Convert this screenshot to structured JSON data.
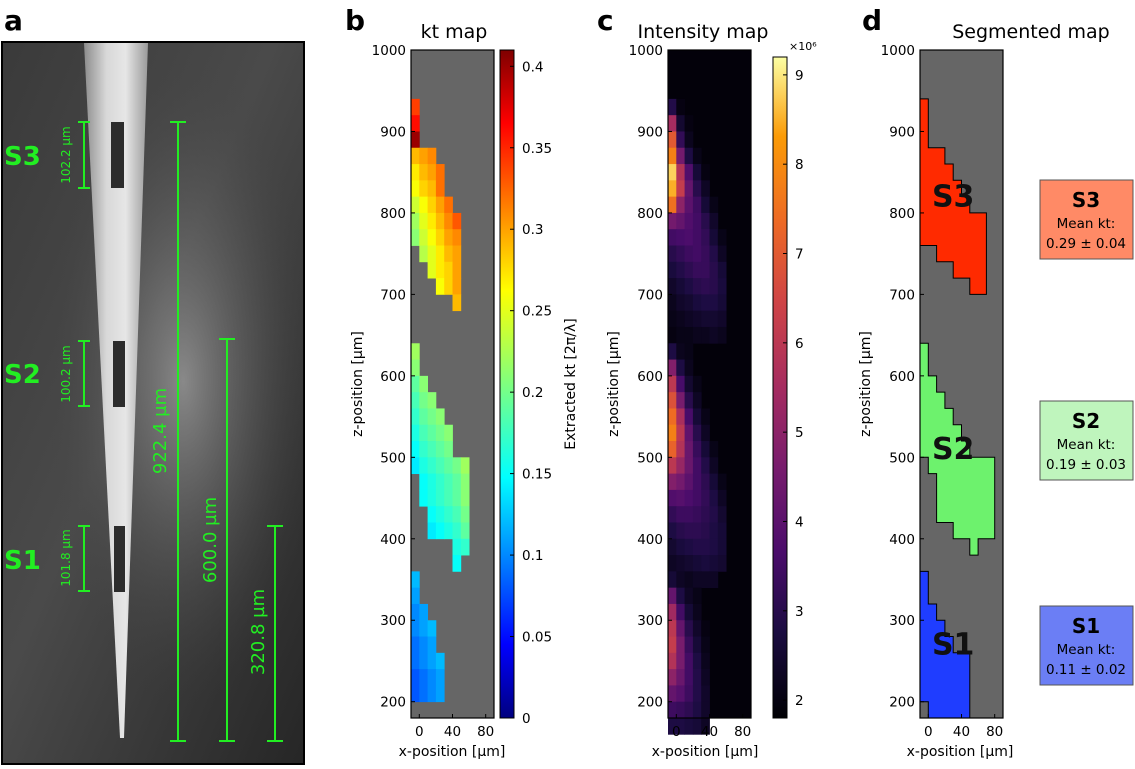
{
  "panels": {
    "a": {
      "label": "a"
    },
    "b": {
      "label": "b",
      "title": "kt map"
    },
    "c": {
      "label": "c",
      "title": "Intensity map"
    },
    "d": {
      "label": "d",
      "title": "Segmented map"
    }
  },
  "sem_image": {
    "sections": [
      {
        "name": "S3",
        "length": "102.2 µm"
      },
      {
        "name": "S2",
        "length": "100.2 µm"
      },
      {
        "name": "S1",
        "length": "101.8 µm"
      }
    ],
    "distances": [
      "922.4 µm",
      "600.0 µm",
      "320.8 µm"
    ]
  },
  "chart_data": [
    {
      "type": "heatmap",
      "panel": "b",
      "title": "kt map",
      "xlabel": "x-position [µm]",
      "ylabel": "z-position [µm]",
      "xticks": [
        "0",
        "40",
        "80"
      ],
      "yticks": [
        "200",
        "300",
        "400",
        "500",
        "600",
        "700",
        "800",
        "900",
        "1000"
      ],
      "xlim": [
        -10,
        90
      ],
      "ylim": [
        180,
        1000
      ],
      "colorbar": {
        "label": "Extracted kt [2π/λ]",
        "range": [
          0,
          0.41
        ],
        "ticks": [
          "0",
          "0.05",
          "0.1",
          "0.15",
          "0.2",
          "0.25",
          "0.3",
          "0.35",
          "0.4"
        ],
        "colormap": "jet"
      },
      "background_color": "#666666",
      "grid": {
        "x0": -10,
        "dx": 10,
        "z0": 1000,
        "dz": 20
      },
      "rows_note": "each row: [z_top, x_start_index, values...]",
      "rows": [
        [
          940,
          0,
          0.34
        ],
        [
          920,
          0,
          0.36
        ],
        [
          900,
          0,
          0.4
        ],
        [
          880,
          0,
          0.29,
          0.3,
          0.31
        ],
        [
          860,
          0,
          0.27,
          0.29,
          0.3,
          0.32
        ],
        [
          840,
          0,
          0.26,
          0.28,
          0.29,
          0.32
        ],
        [
          820,
          0,
          0.24,
          0.26,
          0.28,
          0.3,
          0.32
        ],
        [
          800,
          0,
          0.22,
          0.25,
          0.27,
          0.29,
          0.31,
          0.33
        ],
        [
          780,
          0,
          0.21,
          0.24,
          0.26,
          0.28,
          0.3,
          0.31
        ],
        [
          760,
          1,
          0.23,
          0.25,
          0.27,
          0.29,
          0.3
        ],
        [
          740,
          2,
          0.25,
          0.27,
          0.28,
          0.3
        ],
        [
          720,
          3,
          0.26,
          0.28,
          0.3
        ],
        [
          700,
          5,
          0.29
        ],
        [
          640,
          0,
          0.22
        ],
        [
          620,
          0,
          0.21
        ],
        [
          600,
          0,
          0.19,
          0.21
        ],
        [
          580,
          0,
          0.18,
          0.2,
          0.21
        ],
        [
          560,
          0,
          0.17,
          0.19,
          0.2,
          0.21
        ],
        [
          540,
          0,
          0.16,
          0.18,
          0.19,
          0.2,
          0.21
        ],
        [
          520,
          0,
          0.15,
          0.17,
          0.18,
          0.19,
          0.2
        ],
        [
          500,
          0,
          0.14,
          0.16,
          0.17,
          0.18,
          0.19,
          0.2,
          0.22
        ],
        [
          480,
          1,
          0.15,
          0.16,
          0.17,
          0.18,
          0.19,
          0.21
        ],
        [
          460,
          1,
          0.15,
          0.16,
          0.17,
          0.18,
          0.19,
          0.21
        ],
        [
          440,
          2,
          0.15,
          0.16,
          0.17,
          0.18,
          0.2
        ],
        [
          420,
          2,
          0.14,
          0.15,
          0.16,
          0.17,
          0.19
        ],
        [
          400,
          5,
          0.16,
          0.17
        ],
        [
          380,
          5,
          0.15
        ],
        [
          360,
          0,
          0.12
        ],
        [
          340,
          0,
          0.11
        ],
        [
          320,
          0,
          0.1,
          0.11
        ],
        [
          300,
          0,
          0.1,
          0.11,
          0.12
        ],
        [
          280,
          0,
          0.09,
          0.1,
          0.11
        ],
        [
          260,
          0,
          0.09,
          0.1,
          0.11,
          0.12
        ],
        [
          240,
          0,
          0.08,
          0.09,
          0.1,
          0.11
        ],
        [
          220,
          0,
          0.08,
          0.09,
          0.1,
          0.11
        ]
      ]
    },
    {
      "type": "heatmap",
      "panel": "c",
      "title": "Intensity map",
      "xlabel": "x-position [µm]",
      "ylabel": "z-position [µm]",
      "xticks": [
        "0",
        "40",
        "80"
      ],
      "yticks": [
        "200",
        "300",
        "400",
        "500",
        "600",
        "700",
        "800",
        "900",
        "1000"
      ],
      "xlim": [
        -10,
        90
      ],
      "ylim": [
        180,
        1000
      ],
      "colorbar": {
        "label": "",
        "multiplier": "×10⁶",
        "range": [
          1.8,
          9.2
        ],
        "ticks": [
          "2",
          "3",
          "4",
          "5",
          "6",
          "7",
          "8",
          "9"
        ],
        "colormap": "inferno"
      },
      "grid": {
        "x0": -10,
        "dx": 10,
        "z0": 1000,
        "dz": 20,
        "ncols": 8
      },
      "background_value": 1.9,
      "rows_note": "each row: [z_top, x_start_index, values...]",
      "rows": [
        [
          940,
          0,
          2.9,
          2.0
        ],
        [
          920,
          0,
          5.5,
          2.5,
          2.0
        ],
        [
          900,
          0,
          7.0,
          3.2,
          2.2
        ],
        [
          880,
          0,
          7.8,
          4.5,
          2.8,
          2.1
        ],
        [
          860,
          0,
          8.8,
          5.8,
          3.8,
          2.6,
          2.0
        ],
        [
          840,
          0,
          8.5,
          6.2,
          4.2,
          3.0,
          2.3
        ],
        [
          820,
          0,
          7.5,
          5.0,
          4.0,
          3.4,
          2.6,
          2.1
        ],
        [
          800,
          0,
          4.5,
          4.2,
          3.8,
          3.5,
          3.0,
          2.4
        ],
        [
          780,
          0,
          3.5,
          3.6,
          3.7,
          3.5,
          3.2,
          2.6,
          2.1
        ],
        [
          760,
          0,
          3.0,
          3.2,
          3.4,
          3.5,
          3.3,
          2.9,
          2.3
        ],
        [
          740,
          0,
          2.7,
          2.9,
          3.1,
          3.3,
          3.3,
          3.0,
          2.6
        ],
        [
          720,
          0,
          2.4,
          2.6,
          2.8,
          3.0,
          3.1,
          3.0,
          2.7
        ],
        [
          700,
          0,
          2.2,
          2.4,
          2.5,
          2.7,
          2.8,
          2.8,
          2.6
        ],
        [
          680,
          0,
          2.1,
          2.2,
          2.3,
          2.4,
          2.5,
          2.5,
          2.4
        ],
        [
          660,
          0,
          2.0,
          2.1,
          2.1,
          2.2,
          2.2,
          2.3,
          2.2
        ],
        [
          640,
          0,
          2.8,
          2.2,
          2.1
        ],
        [
          620,
          0,
          4.8,
          2.8,
          2.2
        ],
        [
          600,
          0,
          6.0,
          3.6,
          2.5,
          2.1
        ],
        [
          580,
          0,
          6.8,
          4.6,
          3.0,
          2.3
        ],
        [
          560,
          0,
          7.4,
          5.6,
          3.6,
          2.6,
          2.1
        ],
        [
          540,
          0,
          7.8,
          6.0,
          4.1,
          3.0,
          2.3
        ],
        [
          520,
          0,
          7.2,
          5.8,
          4.3,
          3.3,
          2.6,
          2.1
        ],
        [
          500,
          0,
          6.0,
          5.2,
          4.3,
          3.5,
          2.9,
          2.3
        ],
        [
          480,
          0,
          4.8,
          4.5,
          4.0,
          3.5,
          3.1,
          2.6,
          2.1
        ],
        [
          460,
          0,
          3.8,
          3.9,
          3.7,
          3.5,
          3.2,
          2.8,
          2.3
        ],
        [
          440,
          0,
          3.2,
          3.4,
          3.4,
          3.3,
          3.1,
          2.9,
          2.5
        ],
        [
          420,
          0,
          2.8,
          3.0,
          3.1,
          3.1,
          3.0,
          2.8,
          2.6
        ],
        [
          400,
          0,
          2.5,
          2.7,
          2.8,
          2.9,
          2.9,
          2.8,
          2.6
        ],
        [
          380,
          0,
          2.3,
          2.4,
          2.5,
          2.6,
          2.7,
          2.6,
          2.5
        ],
        [
          360,
          0,
          2.6,
          2.3,
          2.2,
          2.3,
          2.3,
          2.3
        ],
        [
          340,
          0,
          4.2,
          2.8,
          2.3,
          2.1
        ],
        [
          320,
          0,
          5.4,
          3.5,
          2.6,
          2.2
        ],
        [
          300,
          0,
          6.0,
          4.2,
          3.0,
          2.4,
          2.0
        ],
        [
          280,
          0,
          6.2,
          4.6,
          3.3,
          2.6,
          2.1
        ],
        [
          260,
          0,
          5.8,
          4.6,
          3.5,
          2.8,
          2.2
        ],
        [
          240,
          0,
          5.0,
          4.3,
          3.5,
          2.9,
          2.3
        ],
        [
          220,
          0,
          4.2,
          3.9,
          3.4,
          2.9,
          2.4
        ],
        [
          200,
          0,
          3.4,
          3.3,
          3.1,
          2.8,
          2.4
        ],
        [
          180,
          0,
          2.8,
          2.8,
          2.7,
          2.6,
          2.3
        ]
      ]
    },
    {
      "type": "heatmap",
      "panel": "d",
      "title": "Segmented map",
      "xlabel": "x-position [µm]",
      "ylabel": "z-position [µm]",
      "xticks": [
        "0",
        "40",
        "80"
      ],
      "yticks": [
        "200",
        "300",
        "400",
        "500",
        "600",
        "700",
        "800",
        "900",
        "1000"
      ],
      "xlim": [
        -10,
        90
      ],
      "ylim": [
        180,
        1000
      ],
      "background_color": "#666666",
      "segments": [
        {
          "name": "S3",
          "color": "#ff2a00",
          "mean_kt_label": "Mean kt:",
          "mean_kt": "0.29 ± 0.04",
          "box_color": "#ff8a66",
          "polygon_xz": [
            [
              -10,
              940
            ],
            [
              0,
              940
            ],
            [
              0,
              880
            ],
            [
              20,
              880
            ],
            [
              20,
              860
            ],
            [
              30,
              860
            ],
            [
              30,
              840
            ],
            [
              40,
              840
            ],
            [
              40,
              820
            ],
            [
              50,
              820
            ],
            [
              50,
              800
            ],
            [
              70,
              800
            ],
            [
              70,
              700
            ],
            [
              50,
              700
            ],
            [
              50,
              720
            ],
            [
              30,
              720
            ],
            [
              30,
              740
            ],
            [
              10,
              740
            ],
            [
              10,
              760
            ],
            [
              -10,
              760
            ]
          ]
        },
        {
          "name": "S2",
          "color": "#6df26d",
          "mean_kt_label": "Mean kt:",
          "mean_kt": "0.19 ± 0.03",
          "box_color": "#bff5bd",
          "polygon_xz": [
            [
              -10,
              640
            ],
            [
              0,
              640
            ],
            [
              0,
              600
            ],
            [
              10,
              600
            ],
            [
              10,
              580
            ],
            [
              20,
              580
            ],
            [
              20,
              560
            ],
            [
              30,
              560
            ],
            [
              30,
              540
            ],
            [
              40,
              540
            ],
            [
              40,
              520
            ],
            [
              50,
              520
            ],
            [
              50,
              500
            ],
            [
              80,
              500
            ],
            [
              80,
              400
            ],
            [
              60,
              400
            ],
            [
              60,
              380
            ],
            [
              50,
              380
            ],
            [
              50,
              400
            ],
            [
              30,
              400
            ],
            [
              30,
              420
            ],
            [
              10,
              420
            ],
            [
              10,
              480
            ],
            [
              0,
              480
            ],
            [
              0,
              500
            ],
            [
              -10,
              500
            ]
          ]
        },
        {
          "name": "S1",
          "color": "#1f3dff",
          "mean_kt_label": "Mean kt:",
          "mean_kt": "0.11 ± 0.02",
          "box_color": "#6b7ef5",
          "polygon_xz": [
            [
              -10,
              360
            ],
            [
              0,
              360
            ],
            [
              0,
              320
            ],
            [
              10,
              320
            ],
            [
              10,
              300
            ],
            [
              20,
              300
            ],
            [
              20,
              280
            ],
            [
              30,
              280
            ],
            [
              30,
              260
            ],
            [
              50,
              260
            ],
            [
              50,
              180
            ],
            [
              0,
              180
            ],
            [
              0,
              200
            ],
            [
              -10,
              200
            ]
          ]
        }
      ]
    }
  ]
}
